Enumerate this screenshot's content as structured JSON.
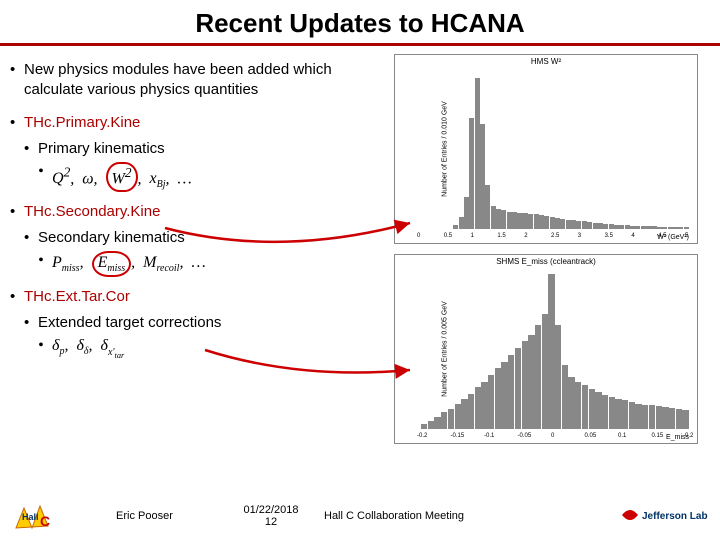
{
  "title": "Recent Updates to HCANA",
  "bullets": {
    "b1": "New physics modules have been added which calculate various physics quantities",
    "b2": "THc.Primary.Kine",
    "b2a": "Primary kinematics",
    "b3": "THc.Secondary.Kine",
    "b3a": "Secondary kinematics",
    "b4": "THc.Ext.Tar.Cor",
    "b4a": "Extended target corrections"
  },
  "formulas": {
    "primary_q2": "Q",
    "primary_omega": "ω",
    "primary_w2": "W",
    "primary_xbj": "x",
    "primary_xbj_sub": "Bj",
    "secondary_pmiss": "P",
    "secondary_pmiss_sub": "miss",
    "secondary_emiss": "E",
    "secondary_emiss_sub": "miss",
    "secondary_mrecoil": "M",
    "secondary_mrecoil_sub": "recoil",
    "ext_dp": "δ",
    "ext_dp_sub": "p",
    "ext_dd": "δ",
    "ext_dd_sub": "δ",
    "ext_dx": "δ",
    "ext_dx_sub": "x'",
    "ext_dx_sub2": "tar",
    "ellipsis": "…"
  },
  "chart_top": {
    "title": "HMS W²",
    "ylabel": "Number of Entries / 0.010 GeV",
    "xlabel": "W² (GeV²)",
    "xlim": [
      0,
      5
    ],
    "ylim": [
      0,
      5500
    ],
    "xticks": [
      "0",
      "0.5",
      "1",
      "1.5",
      "2",
      "2.5",
      "3",
      "3.5",
      "4",
      "4.5",
      "5"
    ],
    "peak_x": 0.9,
    "peak_y": 5200,
    "bar_color": "#888888",
    "border_color": "#888888",
    "background_color": "#ffffff",
    "bins": [
      0,
      0,
      0,
      0,
      0,
      0,
      150,
      400,
      1100,
      3800,
      5200,
      3600,
      1500,
      800,
      700,
      650,
      600,
      580,
      560,
      540,
      520,
      500,
      470,
      440,
      410,
      380,
      350,
      320,
      300,
      280,
      260,
      240,
      220,
      200,
      180,
      160,
      150,
      140,
      130,
      120,
      110,
      100,
      95,
      90,
      85,
      80,
      75,
      70,
      65,
      60
    ]
  },
  "chart_bottom": {
    "title": "SHMS E_miss (ccleantrack)",
    "ylabel": "Number of Entries / 0.005 GeV",
    "xlabel": "E_miss",
    "xlim": [
      -0.2,
      0.2
    ],
    "ylim": [
      0,
      950
    ],
    "xticks": [
      "-0.2",
      "-0.15",
      "-0.1",
      "-0.05",
      "0",
      "0.05",
      "0.1",
      "0.15",
      "0.2"
    ],
    "peak_x": 0.0,
    "peak_y": 920,
    "bar_color": "#888888",
    "border_color": "#888888",
    "background_color": "#ffffff",
    "bins": [
      30,
      50,
      70,
      100,
      120,
      150,
      180,
      210,
      250,
      280,
      320,
      360,
      400,
      440,
      480,
      520,
      560,
      620,
      680,
      920,
      620,
      380,
      310,
      280,
      260,
      240,
      220,
      200,
      190,
      180,
      170,
      160,
      150,
      145,
      140,
      135,
      130,
      125,
      120,
      115
    ]
  },
  "footer": {
    "author": "Eric Pooser",
    "date": "01/22/2018",
    "page": "12",
    "meeting": "Hall C Collaboration Meeting",
    "lab": "Jefferson Lab"
  },
  "colors": {
    "accent": "#aa0000",
    "arrow": "#cc0000",
    "text": "#000000"
  }
}
